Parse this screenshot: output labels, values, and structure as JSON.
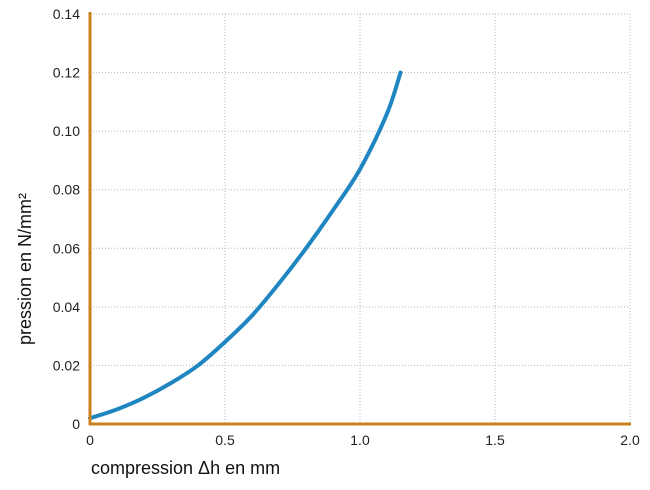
{
  "chart_data": {
    "type": "line",
    "title": "",
    "xlabel": "compression Δh en mm",
    "ylabel": "pression en N/mm²",
    "xlim": [
      0,
      2.0
    ],
    "ylim": [
      0,
      0.14
    ],
    "x_ticks": [
      0,
      0.5,
      1.0,
      1.5,
      2.0
    ],
    "x_tick_labels": [
      "0",
      "0.5",
      "1.0",
      "1.5",
      "2.0"
    ],
    "y_ticks": [
      0,
      0.02,
      0.04,
      0.06,
      0.08,
      0.1,
      0.12,
      0.14
    ],
    "y_tick_labels": [
      "0",
      "0.02",
      "0.04",
      "0.06",
      "0.08",
      "0.10",
      "0.12",
      "0.14"
    ],
    "grid": true,
    "legend": "none",
    "series": [
      {
        "color": "#1f86c1",
        "points": [
          [
            0,
            0.002
          ],
          [
            0.1,
            0.005
          ],
          [
            0.2,
            0.009
          ],
          [
            0.3,
            0.014
          ],
          [
            0.4,
            0.02
          ],
          [
            0.5,
            0.028
          ],
          [
            0.6,
            0.037
          ],
          [
            0.7,
            0.048
          ],
          [
            0.8,
            0.06
          ],
          [
            0.9,
            0.073
          ],
          [
            1.0,
            0.087
          ],
          [
            1.1,
            0.106
          ],
          [
            1.15,
            0.12
          ]
        ]
      }
    ],
    "axis_color": "#c8811e",
    "grid_color": "#b5b5b5"
  }
}
